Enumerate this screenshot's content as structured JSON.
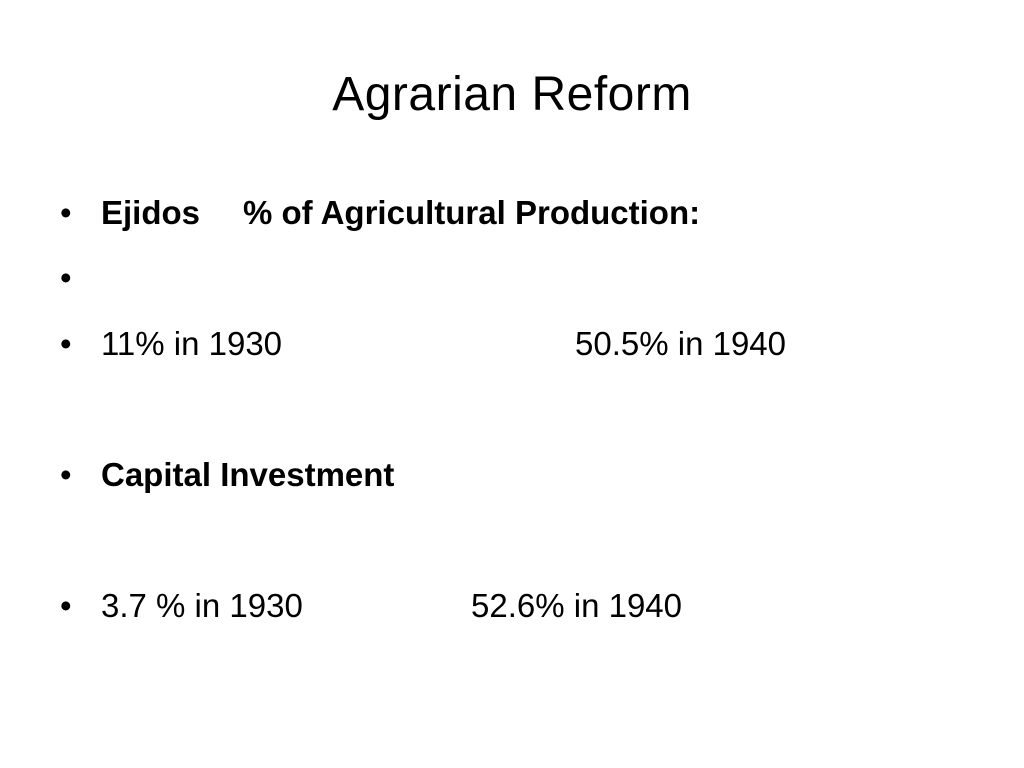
{
  "slide": {
    "title": "Agrarian Reform",
    "bullets": [
      {
        "label_a": "Ejidos",
        "label_b": "% of Agricultural Production:"
      },
      {
        "text": ""
      },
      {
        "left": "11% in 1930",
        "right": "50.5% in 1940"
      },
      {
        "text": "Capital Investment"
      },
      {
        "left": "3.7 % in 1930",
        "right": "52.6% in 1940"
      }
    ],
    "bullet_glyph": "•"
  }
}
